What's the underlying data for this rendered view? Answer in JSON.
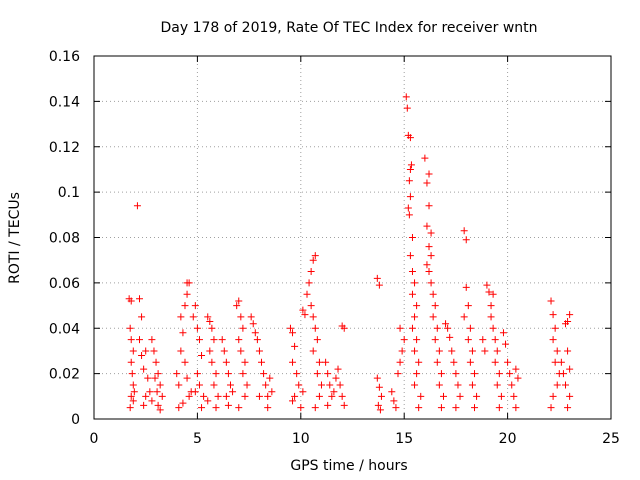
{
  "chart_data": {
    "type": "scatter",
    "title": "Day 178 of 2019, Rate Of TEC Index for receiver wntn",
    "xlabel": "GPS time / hours",
    "ylabel": "ROTI / TECUs",
    "xlim": [
      0,
      25
    ],
    "ylim": [
      0,
      0.16
    ],
    "xticks": [
      0,
      5,
      10,
      15,
      20,
      25
    ],
    "xtick_labels": [
      "0",
      "5",
      "10",
      "15",
      "20",
      "25"
    ],
    "yticks": [
      0,
      0.02,
      0.04,
      0.06,
      0.08,
      0.1,
      0.12,
      0.14,
      0.16
    ],
    "ytick_labels": [
      "0",
      "0.02",
      "0.04",
      "0.06",
      "0.08",
      "0.1",
      "0.12",
      "0.14",
      "0.16"
    ],
    "grid": true,
    "marker": "+",
    "color": "#ff0000",
    "series": [
      {
        "name": "ROTI",
        "points": [
          [
            1.7,
            0.053
          ],
          [
            1.8,
            0.052
          ],
          [
            1.75,
            0.04
          ],
          [
            1.8,
            0.035
          ],
          [
            1.9,
            0.03
          ],
          [
            1.8,
            0.025
          ],
          [
            1.85,
            0.02
          ],
          [
            1.9,
            0.015
          ],
          [
            1.8,
            0.01
          ],
          [
            1.75,
            0.005
          ],
          [
            1.9,
            0.008
          ],
          [
            1.95,
            0.012
          ],
          [
            2.1,
            0.094
          ],
          [
            2.2,
            0.053
          ],
          [
            2.3,
            0.045
          ],
          [
            2.2,
            0.035
          ],
          [
            2.3,
            0.028
          ],
          [
            2.4,
            0.022
          ],
          [
            2.5,
            0.03
          ],
          [
            2.6,
            0.018
          ],
          [
            2.5,
            0.01
          ],
          [
            2.4,
            0.006
          ],
          [
            2.7,
            0.012
          ],
          [
            2.8,
            0.008
          ],
          [
            2.9,
            0.03
          ],
          [
            2.8,
            0.035
          ],
          [
            3.0,
            0.025
          ],
          [
            3.1,
            0.02
          ],
          [
            3.2,
            0.015
          ],
          [
            3.3,
            0.01
          ],
          [
            3.1,
            0.006
          ],
          [
            3.2,
            0.004
          ],
          [
            2.95,
            0.018
          ],
          [
            3.05,
            0.012
          ],
          [
            4.0,
            0.02
          ],
          [
            4.1,
            0.015
          ],
          [
            4.2,
            0.03
          ],
          [
            4.3,
            0.038
          ],
          [
            4.2,
            0.045
          ],
          [
            4.4,
            0.05
          ],
          [
            4.5,
            0.055
          ],
          [
            4.5,
            0.06
          ],
          [
            4.6,
            0.06
          ],
          [
            4.4,
            0.025
          ],
          [
            4.5,
            0.018
          ],
          [
            4.6,
            0.01
          ],
          [
            4.3,
            0.007
          ],
          [
            4.7,
            0.012
          ],
          [
            4.1,
            0.005
          ],
          [
            4.8,
            0.045
          ],
          [
            4.9,
            0.05
          ],
          [
            5.0,
            0.04
          ],
          [
            5.1,
            0.035
          ],
          [
            5.2,
            0.028
          ],
          [
            5.0,
            0.02
          ],
          [
            5.1,
            0.015
          ],
          [
            5.3,
            0.01
          ],
          [
            5.2,
            0.005
          ],
          [
            4.9,
            0.012
          ],
          [
            5.5,
            0.045
          ],
          [
            5.6,
            0.043
          ],
          [
            5.7,
            0.04
          ],
          [
            5.8,
            0.035
          ],
          [
            5.6,
            0.03
          ],
          [
            5.7,
            0.025
          ],
          [
            5.9,
            0.02
          ],
          [
            5.8,
            0.015
          ],
          [
            6.0,
            0.01
          ],
          [
            5.9,
            0.005
          ],
          [
            5.5,
            0.008
          ],
          [
            6.2,
            0.035
          ],
          [
            6.3,
            0.03
          ],
          [
            6.4,
            0.025
          ],
          [
            6.5,
            0.02
          ],
          [
            6.6,
            0.015
          ],
          [
            6.4,
            0.01
          ],
          [
            6.5,
            0.006
          ],
          [
            6.7,
            0.012
          ],
          [
            6.9,
            0.05
          ],
          [
            7.0,
            0.052
          ],
          [
            7.1,
            0.045
          ],
          [
            7.2,
            0.04
          ],
          [
            7.0,
            0.035
          ],
          [
            7.1,
            0.03
          ],
          [
            7.3,
            0.025
          ],
          [
            7.2,
            0.02
          ],
          [
            7.4,
            0.015
          ],
          [
            7.3,
            0.01
          ],
          [
            7.0,
            0.005
          ],
          [
            7.6,
            0.045
          ],
          [
            7.7,
            0.042
          ],
          [
            7.8,
            0.038
          ],
          [
            7.9,
            0.035
          ],
          [
            8.0,
            0.03
          ],
          [
            8.1,
            0.025
          ],
          [
            8.2,
            0.02
          ],
          [
            8.3,
            0.015
          ],
          [
            8.0,
            0.01
          ],
          [
            8.4,
            0.005
          ],
          [
            8.5,
            0.018
          ],
          [
            8.4,
            0.01
          ],
          [
            8.6,
            0.012
          ],
          [
            9.5,
            0.04
          ],
          [
            9.6,
            0.038
          ],
          [
            9.7,
            0.032
          ],
          [
            9.6,
            0.025
          ],
          [
            9.8,
            0.02
          ],
          [
            9.9,
            0.015
          ],
          [
            9.7,
            0.01
          ],
          [
            10.0,
            0.005
          ],
          [
            9.6,
            0.008
          ],
          [
            10.1,
            0.012
          ],
          [
            10.1,
            0.048
          ],
          [
            10.2,
            0.046
          ],
          [
            10.3,
            0.055
          ],
          [
            10.4,
            0.06
          ],
          [
            10.5,
            0.065
          ],
          [
            10.6,
            0.07
          ],
          [
            10.7,
            0.072
          ],
          [
            10.5,
            0.05
          ],
          [
            10.6,
            0.045
          ],
          [
            10.7,
            0.04
          ],
          [
            10.8,
            0.035
          ],
          [
            10.6,
            0.03
          ],
          [
            10.9,
            0.025
          ],
          [
            10.8,
            0.02
          ],
          [
            11.0,
            0.015
          ],
          [
            10.9,
            0.01
          ],
          [
            10.7,
            0.005
          ],
          [
            11.2,
            0.025
          ],
          [
            11.3,
            0.02
          ],
          [
            11.4,
            0.015
          ],
          [
            11.5,
            0.01
          ],
          [
            11.3,
            0.006
          ],
          [
            11.6,
            0.012
          ],
          [
            11.7,
            0.018
          ],
          [
            11.8,
            0.022
          ],
          [
            11.9,
            0.015
          ],
          [
            12.0,
            0.01
          ],
          [
            12.1,
            0.04
          ],
          [
            12.0,
            0.041
          ],
          [
            12.1,
            0.006
          ],
          [
            13.7,
            0.062
          ],
          [
            13.8,
            0.059
          ],
          [
            13.7,
            0.018
          ],
          [
            13.8,
            0.014
          ],
          [
            13.9,
            0.01
          ],
          [
            13.75,
            0.006
          ],
          [
            13.85,
            0.004
          ],
          [
            14.4,
            0.012
          ],
          [
            14.5,
            0.008
          ],
          [
            14.6,
            0.005
          ],
          [
            14.7,
            0.02
          ],
          [
            14.8,
            0.025
          ],
          [
            14.9,
            0.03
          ],
          [
            14.8,
            0.04
          ],
          [
            15.0,
            0.035
          ],
          [
            15.1,
            0.142
          ],
          [
            15.15,
            0.137
          ],
          [
            15.2,
            0.125
          ],
          [
            15.3,
            0.124
          ],
          [
            15.3,
            0.11
          ],
          [
            15.25,
            0.105
          ],
          [
            15.35,
            0.112
          ],
          [
            15.3,
            0.098
          ],
          [
            15.2,
            0.093
          ],
          [
            15.25,
            0.09
          ],
          [
            15.4,
            0.08
          ],
          [
            15.3,
            0.072
          ],
          [
            15.4,
            0.065
          ],
          [
            15.5,
            0.06
          ],
          [
            15.4,
            0.055
          ],
          [
            15.6,
            0.05
          ],
          [
            15.5,
            0.045
          ],
          [
            15.4,
            0.04
          ],
          [
            15.6,
            0.035
          ],
          [
            15.5,
            0.03
          ],
          [
            15.7,
            0.025
          ],
          [
            15.6,
            0.02
          ],
          [
            15.5,
            0.015
          ],
          [
            15.8,
            0.01
          ],
          [
            15.7,
            0.005
          ],
          [
            16.0,
            0.115
          ],
          [
            16.1,
            0.104
          ],
          [
            16.2,
            0.108
          ],
          [
            16.2,
            0.094
          ],
          [
            16.1,
            0.085
          ],
          [
            16.3,
            0.082
          ],
          [
            16.2,
            0.076
          ],
          [
            16.3,
            0.072
          ],
          [
            16.1,
            0.068
          ],
          [
            16.2,
            0.065
          ],
          [
            16.3,
            0.06
          ],
          [
            16.4,
            0.055
          ],
          [
            16.5,
            0.05
          ],
          [
            16.4,
            0.045
          ],
          [
            16.6,
            0.04
          ],
          [
            16.5,
            0.035
          ],
          [
            16.7,
            0.03
          ],
          [
            16.6,
            0.025
          ],
          [
            16.8,
            0.02
          ],
          [
            16.7,
            0.015
          ],
          [
            16.9,
            0.01
          ],
          [
            16.8,
            0.005
          ],
          [
            17.0,
            0.042
          ],
          [
            17.1,
            0.04
          ],
          [
            17.2,
            0.036
          ],
          [
            17.3,
            0.03
          ],
          [
            17.4,
            0.025
          ],
          [
            17.5,
            0.02
          ],
          [
            17.6,
            0.015
          ],
          [
            17.7,
            0.01
          ],
          [
            17.5,
            0.005
          ],
          [
            17.9,
            0.083
          ],
          [
            18.0,
            0.079
          ],
          [
            18.0,
            0.058
          ],
          [
            18.1,
            0.05
          ],
          [
            17.9,
            0.045
          ],
          [
            18.2,
            0.04
          ],
          [
            18.1,
            0.035
          ],
          [
            18.3,
            0.03
          ],
          [
            18.2,
            0.025
          ],
          [
            18.4,
            0.02
          ],
          [
            18.3,
            0.015
          ],
          [
            18.5,
            0.01
          ],
          [
            18.4,
            0.005
          ],
          [
            18.8,
            0.035
          ],
          [
            18.9,
            0.03
          ],
          [
            19.0,
            0.059
          ],
          [
            19.1,
            0.056
          ],
          [
            19.2,
            0.05
          ],
          [
            19.3,
            0.055
          ],
          [
            19.2,
            0.045
          ],
          [
            19.3,
            0.04
          ],
          [
            19.4,
            0.035
          ],
          [
            19.5,
            0.03
          ],
          [
            19.4,
            0.025
          ],
          [
            19.6,
            0.02
          ],
          [
            19.5,
            0.015
          ],
          [
            19.7,
            0.01
          ],
          [
            19.6,
            0.005
          ],
          [
            19.8,
            0.038
          ],
          [
            19.9,
            0.033
          ],
          [
            20.0,
            0.025
          ],
          [
            20.1,
            0.02
          ],
          [
            20.2,
            0.015
          ],
          [
            20.3,
            0.01
          ],
          [
            20.4,
            0.022
          ],
          [
            20.5,
            0.018
          ],
          [
            20.4,
            0.005
          ],
          [
            22.1,
            0.052
          ],
          [
            22.2,
            0.046
          ],
          [
            22.3,
            0.04
          ],
          [
            22.2,
            0.035
          ],
          [
            22.4,
            0.03
          ],
          [
            22.3,
            0.025
          ],
          [
            22.5,
            0.02
          ],
          [
            22.4,
            0.015
          ],
          [
            22.2,
            0.01
          ],
          [
            22.1,
            0.005
          ],
          [
            22.6,
            0.025
          ],
          [
            22.7,
            0.02
          ],
          [
            22.8,
            0.042
          ],
          [
            22.9,
            0.043
          ],
          [
            23.0,
            0.046
          ],
          [
            22.9,
            0.03
          ],
          [
            23.0,
            0.022
          ],
          [
            22.8,
            0.015
          ],
          [
            23.0,
            0.01
          ],
          [
            22.9,
            0.005
          ]
        ]
      }
    ]
  }
}
